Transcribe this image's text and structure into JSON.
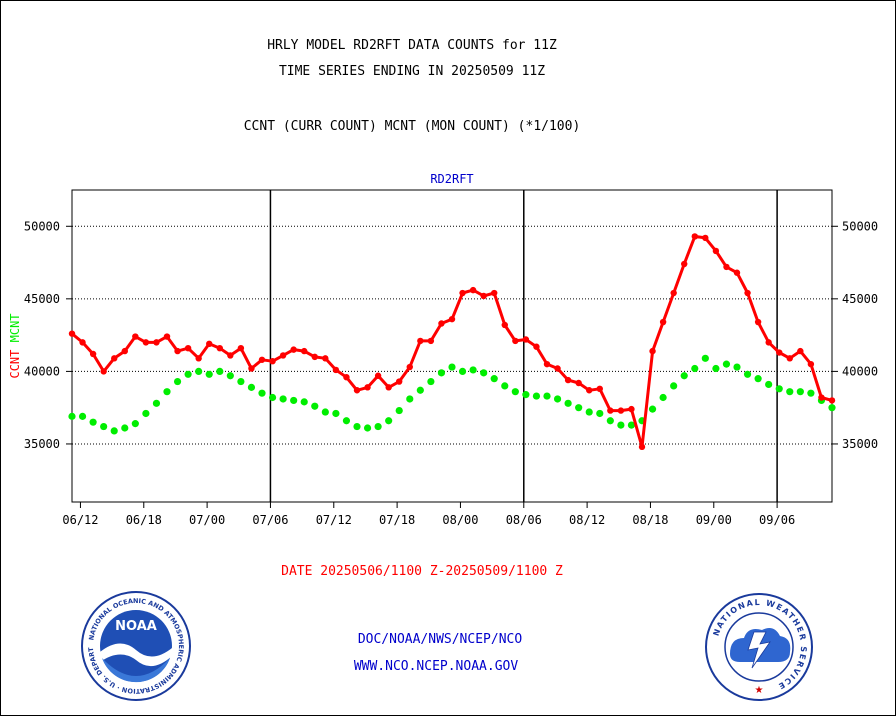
{
  "header": {
    "line1": "HRLY MODEL RD2RFT DATA COUNTS for 11Z",
    "line2": "TIME SERIES ENDING IN 20250509 11Z",
    "line3": "CCNT (CURR COUNT) MCNT (MON COUNT) (*1/100)"
  },
  "footer": {
    "date_range": "DATE 20250506/1100 Z-20250509/1100 Z",
    "org_path": "DOC/NOAA/NWS/NCEP/NCO",
    "website": "WWW.NCO.NCEP.NOAA.GOV"
  },
  "logos": {
    "left": {
      "text": "NOAA",
      "ring_text": "NATIONAL OCEANIC AND ATMOSPHERIC ADMINISTRATION · U.S. DEPARTMENT OF COMMERCE"
    },
    "right": {
      "ring_text": "NATIONAL WEATHER SERVICE"
    }
  },
  "colors": {
    "ccnt": "#ff0000",
    "mcnt": "#00ee00",
    "panel_label": "#0000cc",
    "date_text": "#ff0000",
    "footer_text": "#0000cc"
  },
  "chart_data": {
    "type": "line",
    "title": "RD2RFT",
    "ylabel_parts": [
      {
        "text": "CCNT",
        "color": "#ff0000"
      },
      {
        "text": "MCNT",
        "color": "#00ee00"
      }
    ],
    "ylim": [
      31000,
      52500
    ],
    "yticks": [
      35000,
      40000,
      45000,
      50000
    ],
    "ytick_labels": [
      "35000",
      "40000",
      "45000",
      "50000"
    ],
    "xlim": [
      0,
      72
    ],
    "xtick_positions": [
      0.8,
      6.8,
      12.8,
      18.8,
      24.8,
      30.8,
      36.8,
      42.8,
      48.8,
      54.8,
      60.8,
      66.8
    ],
    "xtick_labels": [
      "06/12",
      "06/18",
      "07/00",
      "07/06",
      "07/12",
      "07/18",
      "08/00",
      "08/06",
      "08/12",
      "08/18",
      "09/00",
      "09/06"
    ],
    "day_boundaries": [
      18.8,
      42.8,
      66.8
    ],
    "grid": true,
    "series": [
      {
        "name": "CCNT",
        "color": "#ff0000",
        "values": [
          42600,
          42000,
          41200,
          40000,
          40900,
          41400,
          42400,
          42000,
          42000,
          42400,
          41400,
          41600,
          40900,
          41900,
          41600,
          41100,
          41600,
          40200,
          40800,
          40700,
          41100,
          41500,
          41400,
          41000,
          40900,
          40100,
          39600,
          38700,
          38900,
          39700,
          38900,
          39300,
          40300,
          42100,
          42100,
          43300,
          43600,
          45400,
          45600,
          45200,
          45400,
          43200,
          42100,
          42200,
          41700,
          40500,
          40200,
          39400,
          39200,
          38700,
          38800,
          37300,
          37300,
          37400,
          34800,
          41400,
          43400,
          45400,
          47400,
          49300,
          49200,
          48300,
          47200,
          46800,
          45400,
          43400,
          42000,
          41300,
          40900,
          41400,
          40500,
          38200,
          38000
        ]
      },
      {
        "name": "MCNT",
        "color": "#00ee00",
        "values": [
          36900,
          36900,
          36500,
          36200,
          35900,
          36100,
          36400,
          37100,
          37800,
          38600,
          39300,
          39800,
          40000,
          39800,
          40000,
          39700,
          39300,
          38900,
          38500,
          38200,
          38100,
          38000,
          37900,
          37600,
          37200,
          37100,
          36600,
          36200,
          36100,
          36200,
          36600,
          37300,
          38100,
          38700,
          39300,
          39900,
          40300,
          40000,
          40100,
          39900,
          39500,
          39000,
          38600,
          38400,
          38300,
          38300,
          38100,
          37800,
          37500,
          37200,
          37100,
          36600,
          36300,
          36300,
          36600,
          37400,
          38200,
          39000,
          39700,
          40200,
          40900,
          40200,
          40500,
          40300,
          39800,
          39500,
          39100,
          38800,
          38600,
          38600,
          38500,
          38000,
          37500
        ]
      }
    ]
  }
}
